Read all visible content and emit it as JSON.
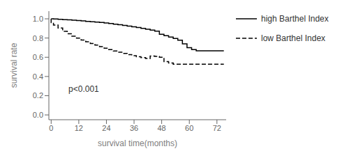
{
  "chart_data": {
    "type": "line",
    "xlabel": "survival time(months)",
    "ylabel": "survival rate",
    "series": [
      {
        "name": "high Barthel Index",
        "color": "black",
        "line_style": "solid",
        "x": [
          0,
          1,
          1,
          3,
          3,
          5,
          5,
          7,
          7,
          9,
          9,
          11,
          11,
          13,
          13,
          15,
          15,
          17,
          17,
          19,
          19,
          21,
          21,
          23,
          23,
          25,
          25,
          27,
          27,
          29,
          29,
          31,
          31,
          33,
          33,
          35,
          35,
          37,
          37,
          39,
          39,
          41,
          41,
          43,
          43,
          45,
          45,
          47,
          47,
          49,
          49,
          51,
          51,
          53,
          53,
          55,
          55,
          57,
          57,
          59,
          59,
          61,
          61,
          63,
          63,
          72,
          72,
          75
        ],
        "values": [
          1.0,
          1.0,
          0.998,
          0.998,
          0.995,
          0.995,
          0.992,
          0.992,
          0.989,
          0.989,
          0.986,
          0.986,
          0.982,
          0.982,
          0.978,
          0.978,
          0.974,
          0.974,
          0.97,
          0.97,
          0.966,
          0.966,
          0.962,
          0.962,
          0.957,
          0.957,
          0.951,
          0.951,
          0.945,
          0.945,
          0.939,
          0.939,
          0.932,
          0.932,
          0.925,
          0.925,
          0.917,
          0.917,
          0.909,
          0.909,
          0.9,
          0.9,
          0.891,
          0.891,
          0.882,
          0.882,
          0.872,
          0.872,
          0.84,
          0.84,
          0.825,
          0.825,
          0.81,
          0.81,
          0.795,
          0.795,
          0.778,
          0.778,
          0.74,
          0.74,
          0.7,
          0.7,
          0.68,
          0.68,
          0.668,
          0.668,
          0.668,
          0.668
        ]
      },
      {
        "name": "low Barthel Index",
        "color": "black",
        "line_style": "dashed",
        "x": [
          0,
          0,
          1,
          1,
          3,
          3,
          5,
          5,
          7,
          7,
          9,
          9,
          11,
          11,
          13,
          13,
          15,
          15,
          17,
          17,
          19,
          19,
          21,
          21,
          23,
          23,
          25,
          25,
          27,
          27,
          29,
          29,
          31,
          31,
          33,
          33,
          35,
          35,
          37,
          37,
          39,
          39,
          41,
          41,
          43,
          43,
          45,
          45,
          47,
          47,
          49,
          49,
          51,
          51,
          53,
          53,
          55,
          55,
          57,
          57,
          59,
          59,
          61,
          61,
          72,
          72,
          75
        ],
        "values": [
          1.0,
          0.96,
          0.96,
          0.935,
          0.935,
          0.905,
          0.905,
          0.87,
          0.87,
          0.845,
          0.845,
          0.82,
          0.82,
          0.8,
          0.8,
          0.78,
          0.78,
          0.762,
          0.762,
          0.744,
          0.744,
          0.727,
          0.727,
          0.711,
          0.711,
          0.695,
          0.695,
          0.68,
          0.68,
          0.666,
          0.666,
          0.653,
          0.653,
          0.64,
          0.64,
          0.628,
          0.628,
          0.617,
          0.617,
          0.606,
          0.606,
          0.596,
          0.596,
          0.587,
          0.587,
          0.613,
          0.613,
          0.61,
          0.61,
          0.6,
          0.6,
          0.555,
          0.555,
          0.54,
          0.54,
          0.528,
          0.528,
          0.528,
          0.528,
          0.528,
          0.528,
          0.528,
          0.528,
          0.528,
          0.528,
          0.528,
          0.528
        ]
      }
    ],
    "xlim": [
      -1,
      76
    ],
    "ylim": [
      -0.05,
      1.08
    ],
    "xticks": [
      0,
      12,
      24,
      36,
      48,
      60,
      72
    ],
    "yticks": [
      {
        "value": 0,
        "label": "0.0"
      },
      0.2,
      0.4,
      0.6,
      0.8,
      {
        "value": 1,
        "label": "1.0"
      }
    ],
    "annotations": [
      {
        "text": "p<0.001",
        "x": 6,
        "y": 0.27
      }
    ],
    "legend": "upper right",
    "grid": false
  }
}
